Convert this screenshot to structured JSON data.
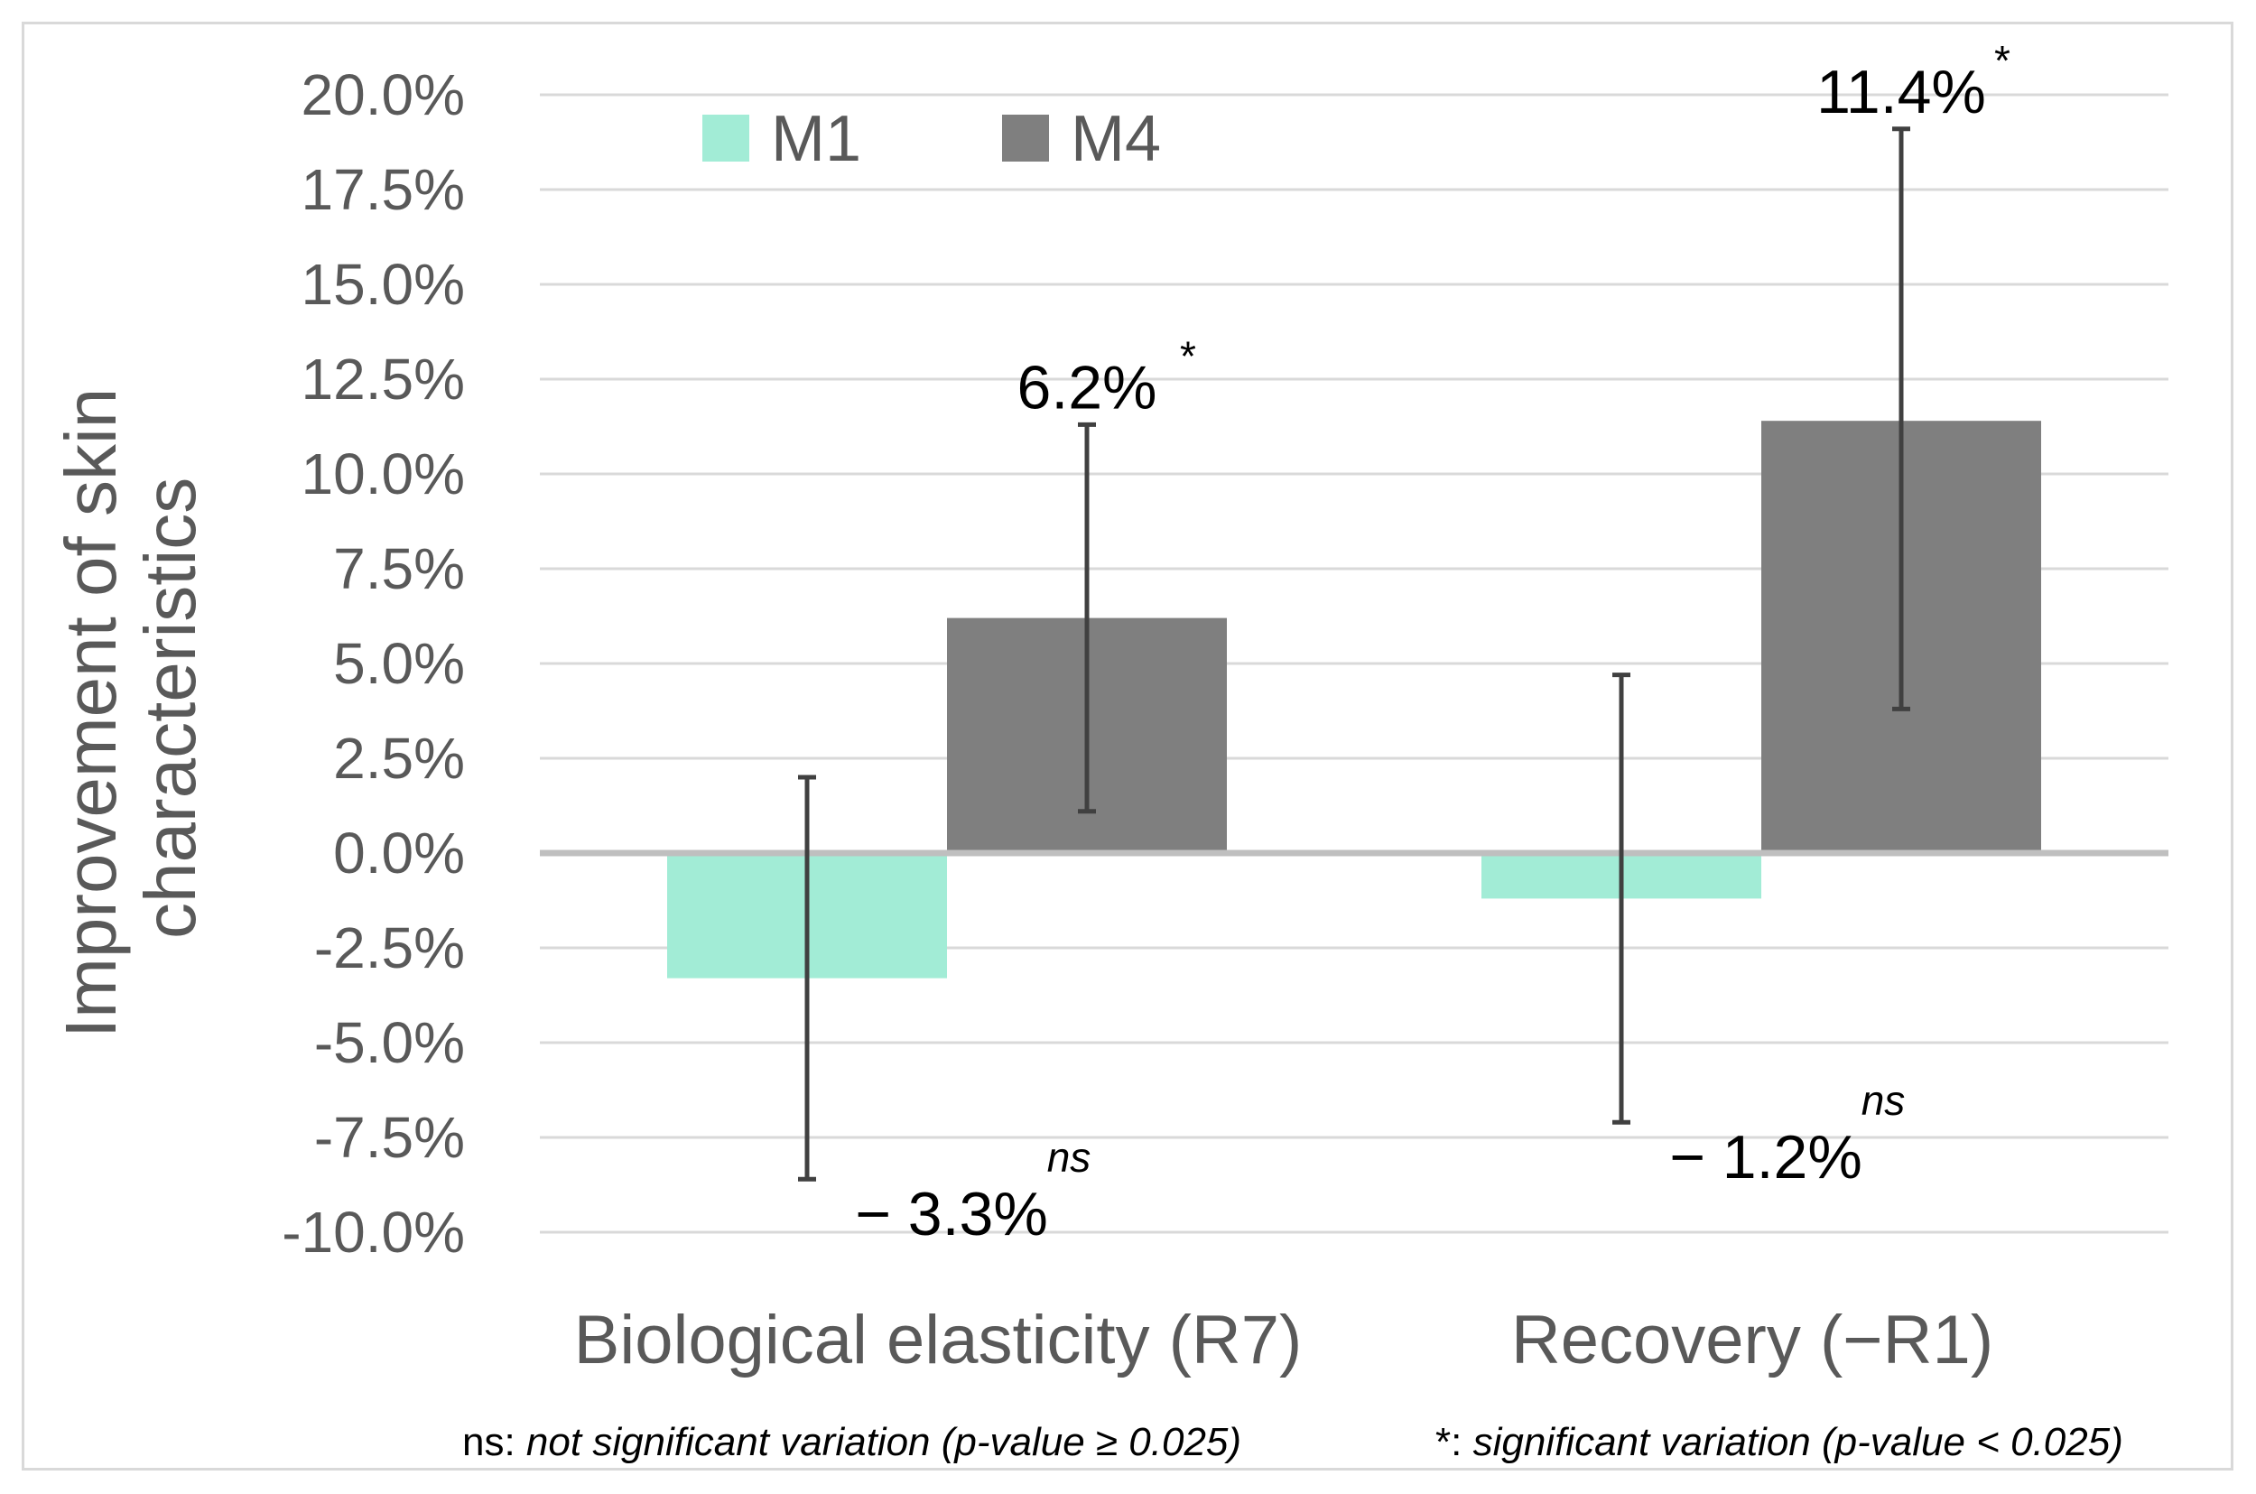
{
  "chart_data": {
    "type": "bar",
    "ylabel": "Improvement of skin characteristics",
    "categories": [
      "Biological elasticity (R7)",
      "Recovery  (−R1)"
    ],
    "series": [
      {
        "name": "M1",
        "color": "#a2ecd6",
        "values": [
          -3.3,
          -1.2
        ],
        "err_low": [
          -8.6,
          -7.1
        ],
        "err_high": [
          2.0,
          4.7
        ],
        "labels": [
          "− 3.3%",
          "− 1.2%"
        ],
        "sig": [
          "ns",
          "ns"
        ]
      },
      {
        "name": "M4",
        "color": "#7f7f7f",
        "values": [
          6.2,
          11.4
        ],
        "err_low": [
          1.1,
          3.8
        ],
        "err_high": [
          11.3,
          19.1
        ],
        "labels": [
          "6.2%",
          "11.4%"
        ],
        "sig": [
          "*",
          "*"
        ]
      }
    ],
    "ylim": [
      -10,
      20
    ],
    "yticks": [
      "-10.0%",
      "-7.5%",
      "-5.0%",
      "-2.5%",
      "0.0%",
      "2.5%",
      "5.0%",
      "7.5%",
      "10.0%",
      "12.5%",
      "15.0%",
      "17.5%",
      "20.0%"
    ],
    "ytick_values": [
      -10,
      -7.5,
      -5,
      -2.5,
      0,
      2.5,
      5,
      7.5,
      10,
      12.5,
      15,
      17.5,
      20
    ],
    "grid": true,
    "legend_position": "top-left",
    "notes": {
      "ns_prefix": "ns: ",
      "ns_text": "not significant variation (p-value ≥ 0.025)",
      "sig_prefix": "*: ",
      "sig_text": "significant variation (p-value < 0.025)"
    }
  }
}
